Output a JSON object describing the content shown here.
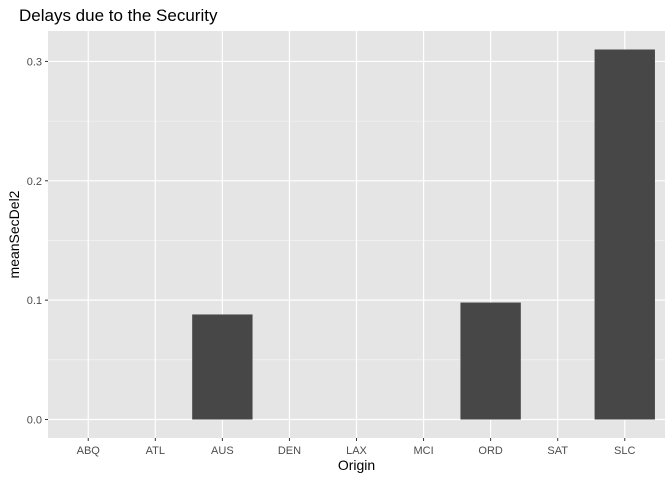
{
  "chart_data": {
    "type": "bar",
    "title": "Delays due to the Security",
    "xlabel": "Origin",
    "ylabel": "meanSecDel2",
    "categories": [
      "ABQ",
      "ATL",
      "AUS",
      "DEN",
      "LAX",
      "MCI",
      "ORD",
      "SAT",
      "SLC"
    ],
    "values": [
      0,
      0,
      0.088,
      0,
      0,
      0,
      0.098,
      0,
      0.31
    ],
    "ylim": [
      -0.0155,
      0.3255
    ],
    "yticks": [
      0,
      0.1,
      0.2,
      0.3
    ],
    "ytick_labels": [
      "0.0",
      "0.1",
      "0.2",
      "0.3"
    ],
    "grid": true,
    "legend": "none",
    "colors": {
      "panel": "#e5e5e5",
      "grid_major": "#ffffff",
      "bar": "#474747",
      "tick": "#333333"
    }
  }
}
